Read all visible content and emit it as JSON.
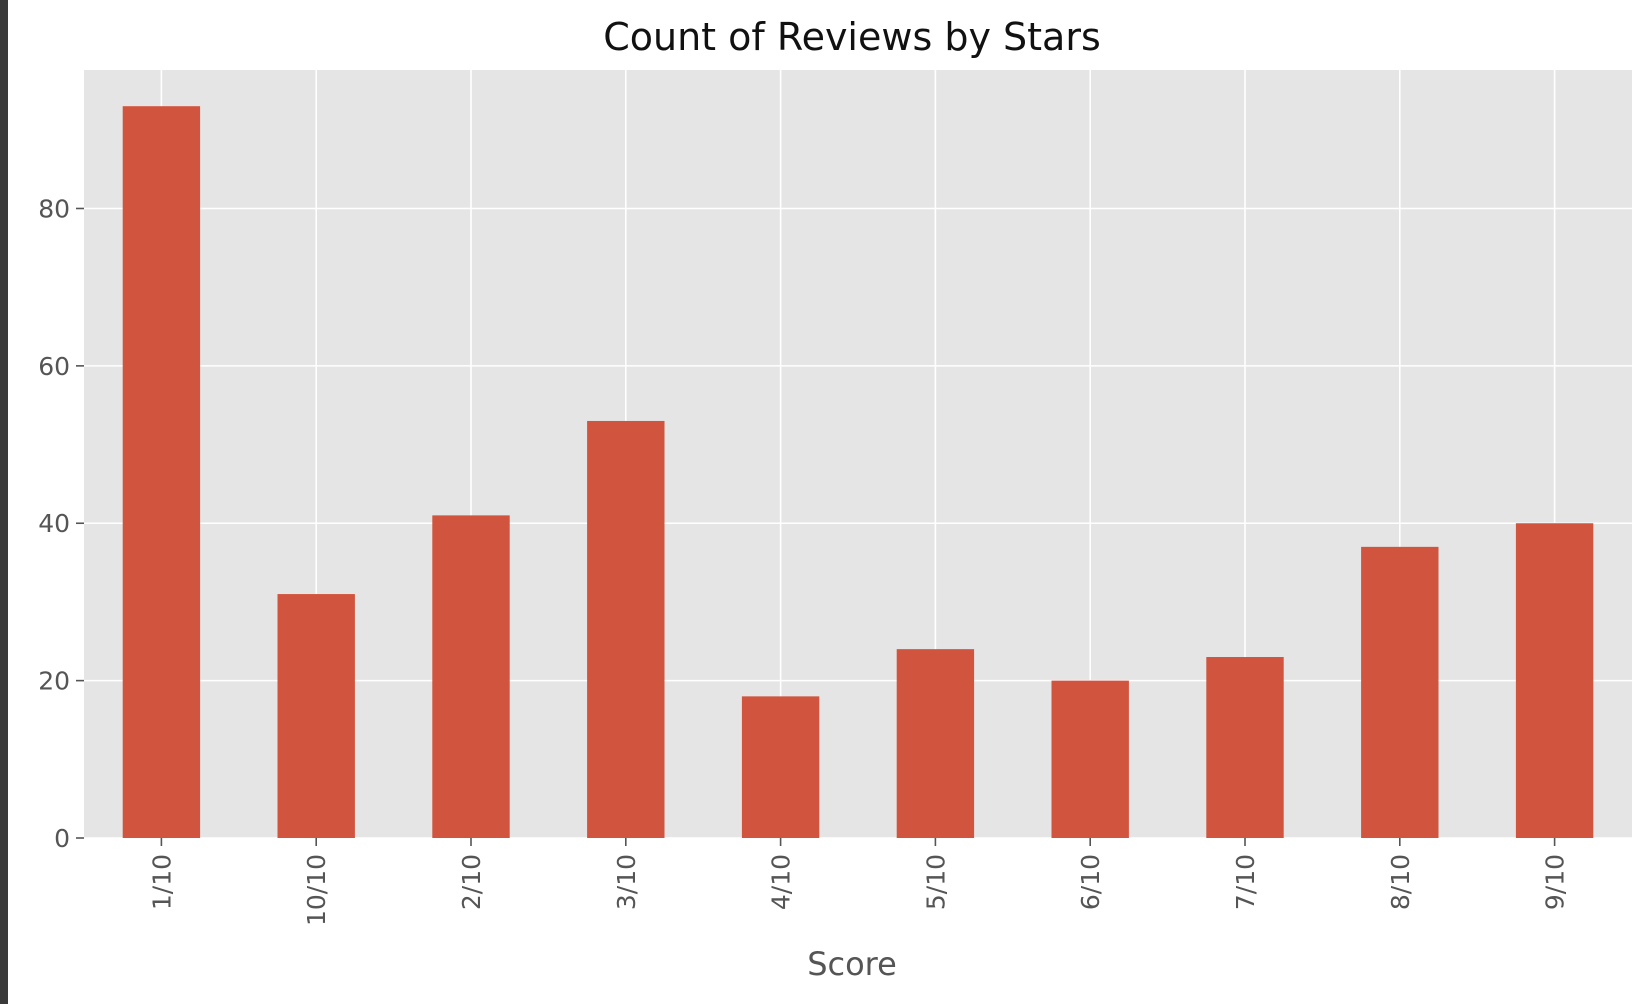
{
  "chart_data": {
    "type": "bar",
    "title": "Count of Reviews by Stars",
    "xlabel": "Score",
    "ylabel": "",
    "categories": [
      "1/10",
      "10/10",
      "2/10",
      "3/10",
      "4/10",
      "5/10",
      "6/10",
      "7/10",
      "8/10",
      "9/10"
    ],
    "values": [
      93,
      31,
      41,
      53,
      18,
      24,
      20,
      23,
      37,
      40
    ],
    "ylim": [
      0,
      97.6
    ],
    "yticks": [
      0,
      20,
      40,
      60,
      80
    ],
    "grid": true,
    "bar_color": "#d1553e",
    "plot_background": "#e5e5e5",
    "grid_color": "#ffffff",
    "legend": "none"
  }
}
